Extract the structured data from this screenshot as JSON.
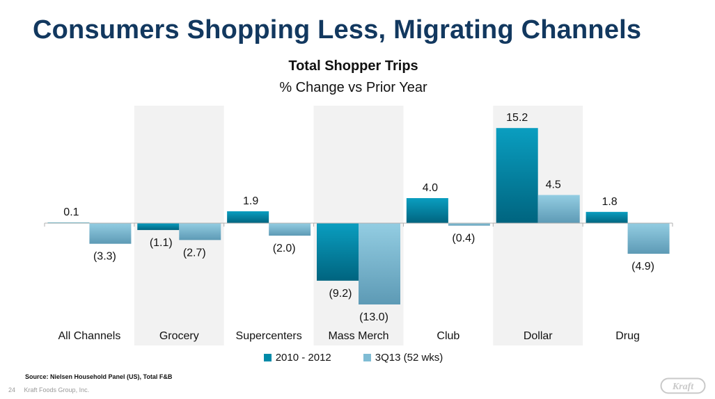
{
  "slide": {
    "title": "Consumers Shopping Less, Migrating Channels",
    "source": "Source: Nielsen Household Panel (US), Total F&B",
    "page_number": "24",
    "company": "Kraft Foods Group, Inc.",
    "logo_text": "Kraft"
  },
  "chart_data": {
    "type": "bar",
    "title": "Total Shopper Trips",
    "subtitle": "% Change vs Prior Year",
    "xlabel": "",
    "ylabel": "",
    "categories": [
      "All Channels",
      "Grocery",
      "Supercenters",
      "Mass Merch",
      "Club",
      "Dollar",
      "Drug"
    ],
    "series": [
      {
        "name": "2010 - 2012",
        "values": [
          0.1,
          -1.1,
          1.9,
          -9.2,
          4.0,
          15.2,
          1.8
        ],
        "labels": [
          "0.1",
          "(1.1)",
          "1.9",
          "(9.2)",
          "4.0",
          "15.2",
          "1.8"
        ],
        "color": "#008aa8"
      },
      {
        "name": "3Q13 (52 wks)",
        "values": [
          -3.3,
          -2.7,
          -2.0,
          -13.0,
          -0.4,
          4.5,
          -4.9
        ],
        "labels": [
          "(3.3)",
          "(2.7)",
          "(2.0)",
          "(13.0)",
          "(0.4)",
          "4.5",
          "(4.9)"
        ],
        "color": "#7fbcd4"
      }
    ],
    "shaded_categories": [
      1,
      3,
      5
    ],
    "ylim": [
      -13.5,
      15.5
    ],
    "grid": false,
    "legend_position": "bottom"
  }
}
